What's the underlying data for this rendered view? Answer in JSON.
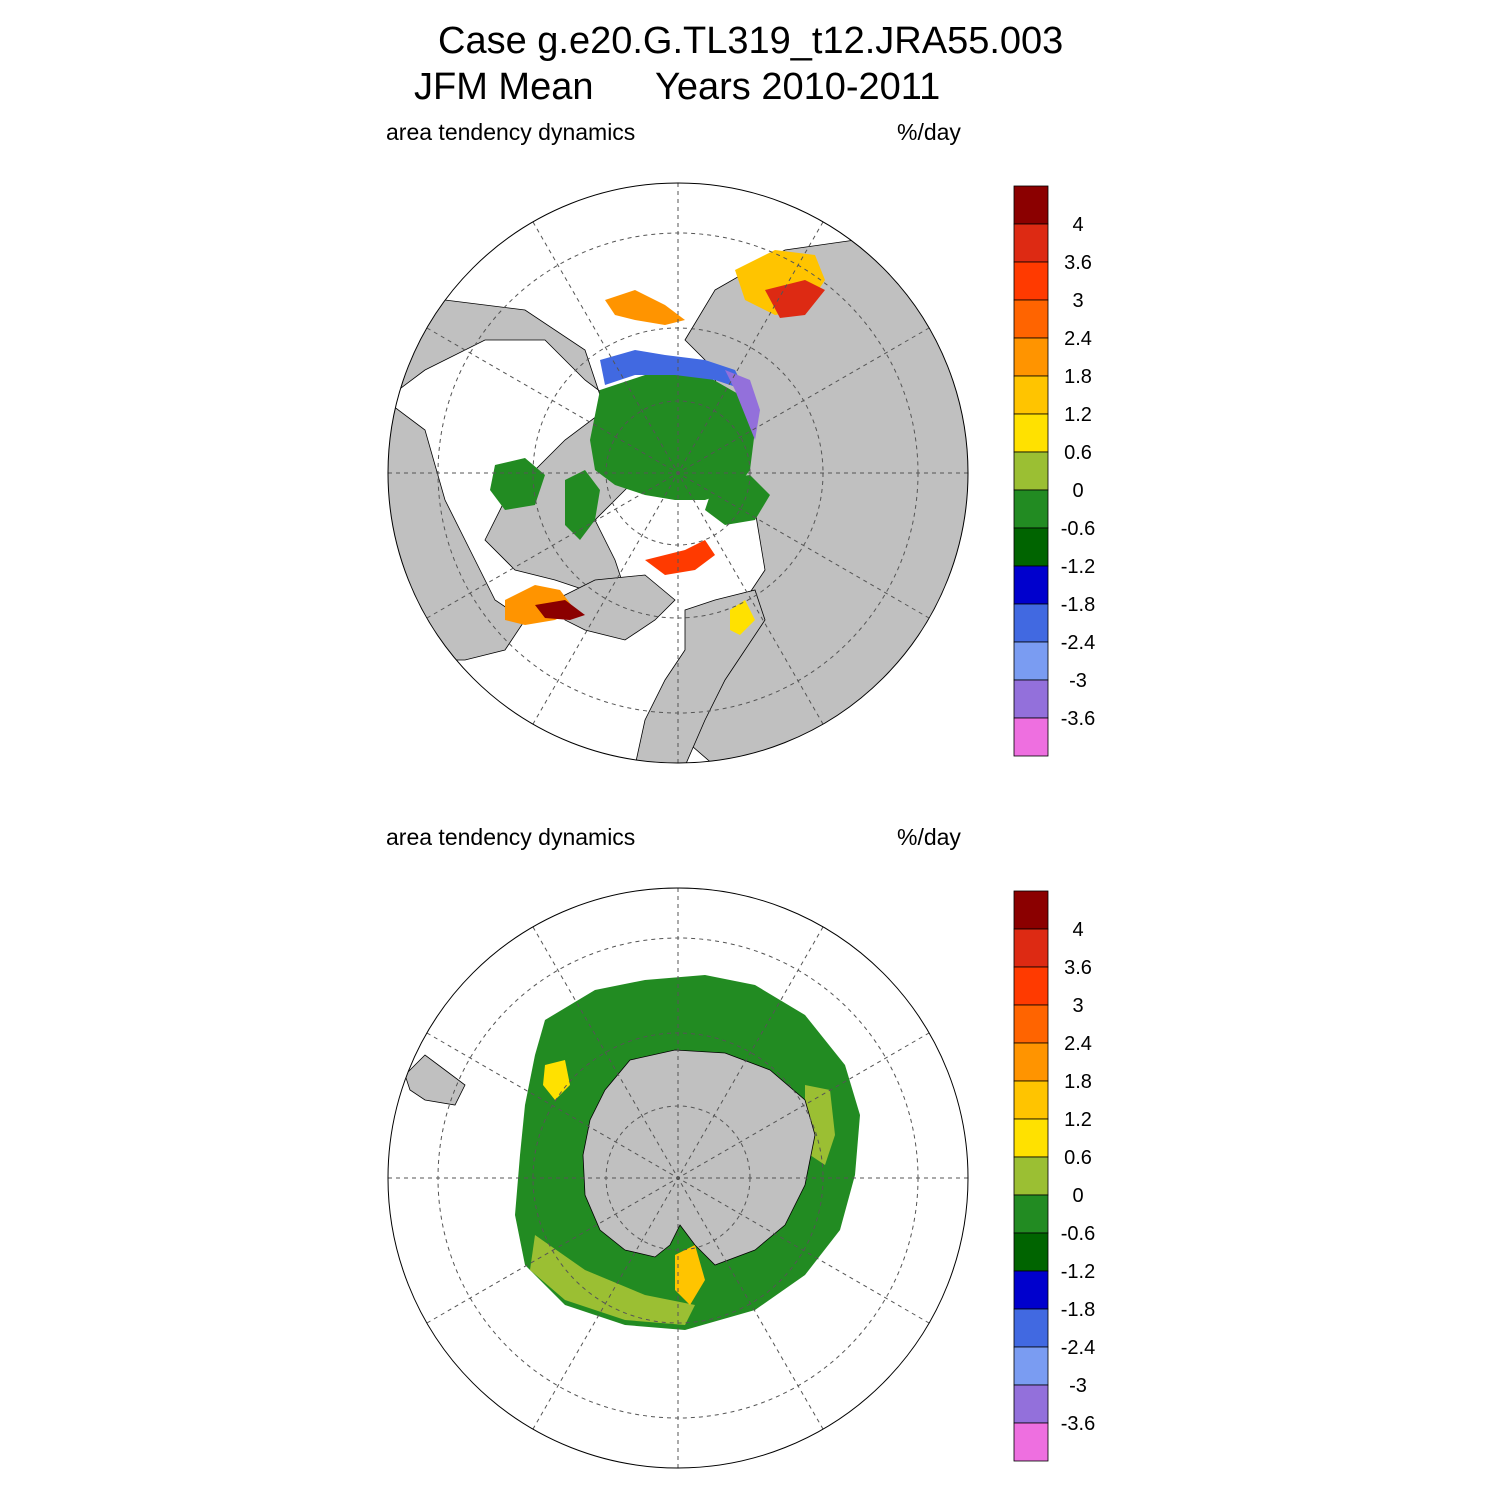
{
  "figure": {
    "title_line1": "Case g.e20.G.TL319_t12.JRA55.003",
    "title_line2_season": "JFM Mean",
    "title_line2_years": "Years 2010-2011"
  },
  "panels": [
    {
      "hemisphere": "north",
      "left_label": "area tendency dynamics",
      "right_label": "%/day"
    },
    {
      "hemisphere": "south",
      "left_label": "area tendency dynamics",
      "right_label": "%/day"
    }
  ],
  "colorbar": {
    "labels": [
      "4",
      "3.6",
      "3",
      "2.4",
      "1.8",
      "1.2",
      "0.6",
      "0",
      "-0.6",
      "-1.2",
      "-1.8",
      "-2.4",
      "-3",
      "-3.6"
    ],
    "colors": [
      "#8b0000",
      "#dd2a13",
      "#ff3a00",
      "#ff6400",
      "#ff9400",
      "#ffc400",
      "#ffe100",
      "#9bbf33",
      "#228b22",
      "#006400",
      "#0000cd",
      "#4169e1",
      "#7a9cf2",
      "#9370db",
      "#ee6fe0"
    ]
  },
  "map_colors": {
    "land": "#c0c0c0",
    "ocean": "#ffffff",
    "grid": "#555555"
  }
}
